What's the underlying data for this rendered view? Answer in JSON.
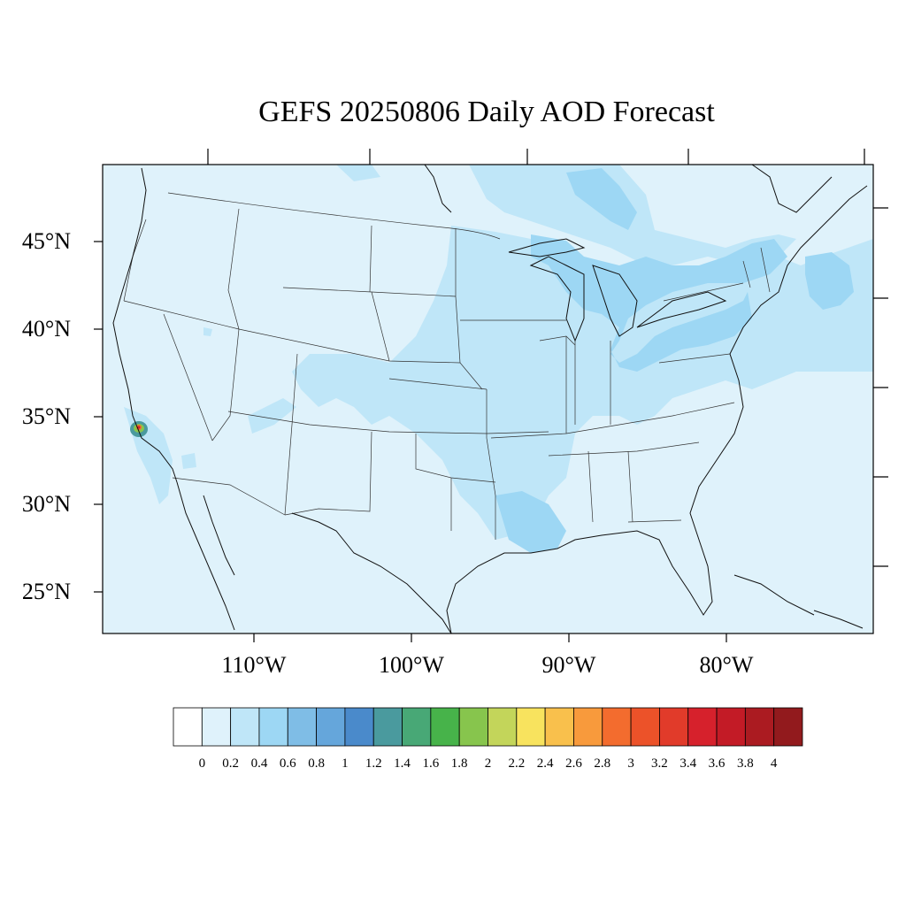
{
  "title": "GEFS 20250806 Daily AOD Forecast",
  "map": {
    "region": "Contiguous United States",
    "background_color": "#dff2fb",
    "lat_ticks": [
      {
        "label": "45°N",
        "value": 45
      },
      {
        "label": "40°N",
        "value": 40
      },
      {
        "label": "35°N",
        "value": 35
      },
      {
        "label": "30°N",
        "value": 30
      },
      {
        "label": "25°N",
        "value": 25
      }
    ],
    "lon_ticks": [
      {
        "label": "110°W",
        "value": -110
      },
      {
        "label": "100°W",
        "value": -100
      },
      {
        "label": "90°W",
        "value": -90
      },
      {
        "label": "80°W",
        "value": -80
      }
    ]
  },
  "colorbar": {
    "labels": [
      "0",
      "0.2",
      "0.4",
      "0.6",
      "0.8",
      "1",
      "1.2",
      "1.4",
      "1.6",
      "1.8",
      "2",
      "2.2",
      "2.4",
      "2.6",
      "2.8",
      "3",
      "3.2",
      "3.4",
      "3.6",
      "3.8",
      "4"
    ],
    "colors": [
      "#ffffff",
      "#dff2fb",
      "#bfe6f8",
      "#9dd7f4",
      "#7fbde6",
      "#65a6db",
      "#4a8acb",
      "#4a9a9e",
      "#48a876",
      "#47b34a",
      "#87c54d",
      "#c3d55a",
      "#f8e35e",
      "#f9c04c",
      "#f89a3c",
      "#f36c2e",
      "#ec5229",
      "#e13b2a",
      "#d6212c",
      "#c31b26",
      "#ab1b21",
      "#921a1d"
    ]
  }
}
